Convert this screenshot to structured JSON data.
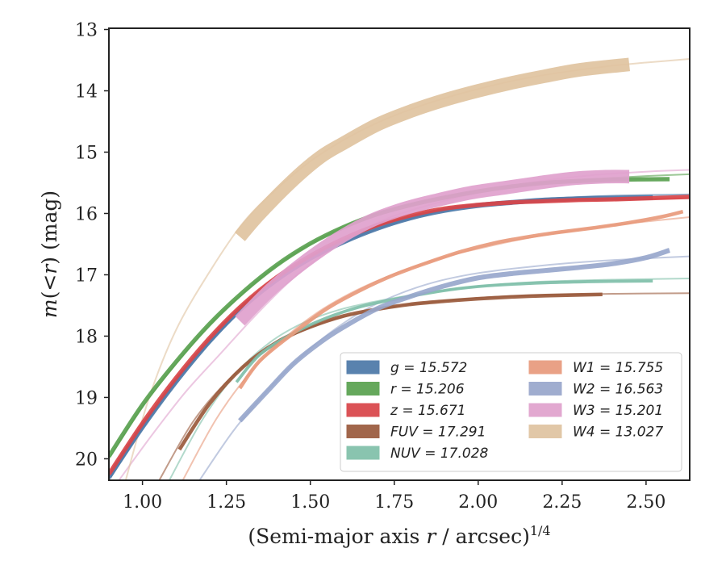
{
  "chart_data": {
    "type": "line",
    "xlabel": "(Semi-major axis r / arcsec)^1/4",
    "xlabel_parts": {
      "prefix": "(Semi-major axis ",
      "var": "r",
      "suffix": " / arcsec)",
      "sup": "1/4"
    },
    "ylabel": "m(< r) (mag)",
    "ylabel_parts": {
      "m": "m",
      "open": "(<",
      "r": "r",
      "close": ") (mag)"
    },
    "xlim": [
      0.9,
      2.63
    ],
    "ylim": [
      20.35,
      12.98
    ],
    "y_inverted": true,
    "x_ticks": [
      1.0,
      1.25,
      1.5,
      1.75,
      2.0,
      2.25,
      2.5
    ],
    "x_tick_labels": [
      "1.00",
      "1.25",
      "1.50",
      "1.75",
      "2.00",
      "2.25",
      "2.50"
    ],
    "y_ticks": [
      13,
      14,
      15,
      16,
      17,
      18,
      19,
      20
    ],
    "y_tick_labels": [
      "13",
      "14",
      "15",
      "16",
      "17",
      "18",
      "19",
      "20"
    ],
    "legend_position": "lower-right",
    "series": [
      {
        "name": "g = 15.572",
        "var": "g",
        "value": "15.572",
        "color": "#4c78a8",
        "model": [
          [
            0.9,
            20.35
          ],
          [
            1.0,
            19.5
          ],
          [
            1.1,
            18.75
          ],
          [
            1.2,
            18.1
          ],
          [
            1.3,
            17.55
          ],
          [
            1.4,
            17.1
          ],
          [
            1.5,
            16.75
          ],
          [
            1.6,
            16.47
          ],
          [
            1.7,
            16.25
          ],
          [
            1.8,
            16.08
          ],
          [
            1.9,
            15.95
          ],
          [
            2.0,
            15.86
          ],
          [
            2.1,
            15.8
          ],
          [
            2.2,
            15.76
          ],
          [
            2.3,
            15.73
          ],
          [
            2.4,
            15.71
          ],
          [
            2.5,
            15.7
          ],
          [
            2.63,
            15.69
          ]
        ],
        "data": [
          [
            0.9,
            20.3
          ],
          [
            1.0,
            19.48
          ],
          [
            1.1,
            18.74
          ],
          [
            1.2,
            18.08
          ],
          [
            1.3,
            17.52
          ],
          [
            1.4,
            17.08
          ],
          [
            1.5,
            16.73
          ],
          [
            1.6,
            16.46
          ],
          [
            1.7,
            16.24
          ],
          [
            1.8,
            16.07
          ],
          [
            1.9,
            15.95
          ],
          [
            2.0,
            15.87
          ],
          [
            2.1,
            15.82
          ],
          [
            2.2,
            15.78
          ],
          [
            2.3,
            15.76
          ],
          [
            2.4,
            15.75
          ],
          [
            2.52,
            15.74
          ]
        ],
        "band_width": 0.08
      },
      {
        "name": "r = 15.206",
        "var": "r",
        "value": "15.206",
        "color": "#59a14f",
        "model": [
          [
            0.9,
            20.0
          ],
          [
            1.0,
            19.15
          ],
          [
            1.1,
            18.45
          ],
          [
            1.2,
            17.82
          ],
          [
            1.3,
            17.3
          ],
          [
            1.4,
            16.85
          ],
          [
            1.5,
            16.5
          ],
          [
            1.6,
            16.22
          ],
          [
            1.7,
            16.0
          ],
          [
            1.8,
            15.85
          ],
          [
            1.9,
            15.73
          ],
          [
            2.0,
            15.63
          ],
          [
            2.1,
            15.56
          ],
          [
            2.2,
            15.5
          ],
          [
            2.3,
            15.46
          ],
          [
            2.4,
            15.42
          ],
          [
            2.5,
            15.39
          ],
          [
            2.63,
            15.36
          ]
        ],
        "data": [
          [
            0.9,
            19.96
          ],
          [
            1.0,
            19.12
          ],
          [
            1.1,
            18.42
          ],
          [
            1.2,
            17.8
          ],
          [
            1.3,
            17.28
          ],
          [
            1.4,
            16.84
          ],
          [
            1.5,
            16.49
          ],
          [
            1.6,
            16.22
          ],
          [
            1.7,
            16.01
          ],
          [
            1.8,
            15.86
          ],
          [
            1.9,
            15.74
          ],
          [
            2.0,
            15.64
          ],
          [
            2.1,
            15.56
          ],
          [
            2.2,
            15.5
          ],
          [
            2.3,
            15.47
          ],
          [
            2.4,
            15.45
          ],
          [
            2.57,
            15.44
          ]
        ],
        "band_width": 0.07
      },
      {
        "name": "z = 15.671",
        "var": "z",
        "value": "15.671",
        "color": "#d94448",
        "model": [
          [
            0.9,
            20.3
          ],
          [
            1.0,
            19.45
          ],
          [
            1.1,
            18.7
          ],
          [
            1.2,
            18.05
          ],
          [
            1.3,
            17.5
          ],
          [
            1.4,
            17.05
          ],
          [
            1.5,
            16.7
          ],
          [
            1.6,
            16.42
          ],
          [
            1.7,
            16.2
          ],
          [
            1.8,
            16.04
          ],
          [
            1.9,
            15.93
          ],
          [
            2.0,
            15.86
          ],
          [
            2.1,
            15.82
          ],
          [
            2.2,
            15.79
          ],
          [
            2.3,
            15.78
          ],
          [
            2.4,
            15.77
          ],
          [
            2.5,
            15.76
          ],
          [
            2.63,
            15.75
          ]
        ],
        "data": [
          [
            0.9,
            20.25
          ],
          [
            1.0,
            19.42
          ],
          [
            1.1,
            18.68
          ],
          [
            1.2,
            18.03
          ],
          [
            1.3,
            17.48
          ],
          [
            1.4,
            17.04
          ],
          [
            1.5,
            16.69
          ],
          [
            1.6,
            16.41
          ],
          [
            1.7,
            16.19
          ],
          [
            1.8,
            16.03
          ],
          [
            1.9,
            15.92
          ],
          [
            2.0,
            15.86
          ],
          [
            2.1,
            15.82
          ],
          [
            2.2,
            15.8
          ],
          [
            2.3,
            15.78
          ],
          [
            2.4,
            15.77
          ],
          [
            2.63,
            15.73
          ]
        ],
        "band_width": 0.07
      },
      {
        "name": "FUV = 17.291",
        "var": "FUV",
        "value": "17.291",
        "color": "#9a5a3c",
        "model": [
          [
            1.05,
            20.35
          ],
          [
            1.15,
            19.4
          ],
          [
            1.25,
            18.75
          ],
          [
            1.35,
            18.3
          ],
          [
            1.45,
            17.98
          ],
          [
            1.55,
            17.76
          ],
          [
            1.65,
            17.62
          ],
          [
            1.75,
            17.52
          ],
          [
            1.85,
            17.45
          ],
          [
            1.95,
            17.4
          ],
          [
            2.05,
            17.36
          ],
          [
            2.2,
            17.33
          ],
          [
            2.4,
            17.31
          ],
          [
            2.63,
            17.3
          ]
        ],
        "data": [
          [
            1.11,
            19.85
          ],
          [
            1.2,
            19.1
          ],
          [
            1.3,
            18.5
          ],
          [
            1.4,
            18.1
          ],
          [
            1.5,
            17.85
          ],
          [
            1.6,
            17.67
          ],
          [
            1.7,
            17.56
          ],
          [
            1.8,
            17.48
          ],
          [
            1.9,
            17.43
          ],
          [
            2.0,
            17.39
          ],
          [
            2.1,
            17.36
          ],
          [
            2.2,
            17.34
          ],
          [
            2.37,
            17.32
          ]
        ],
        "band_width": 0.06
      },
      {
        "name": "NUV = 17.028",
        "var": "NUV",
        "value": "17.028",
        "color": "#7fbfa9",
        "model": [
          [
            1.08,
            20.35
          ],
          [
            1.18,
            19.35
          ],
          [
            1.28,
            18.6
          ],
          [
            1.38,
            18.1
          ],
          [
            1.48,
            17.78
          ],
          [
            1.58,
            17.58
          ],
          [
            1.68,
            17.45
          ],
          [
            1.78,
            17.35
          ],
          [
            1.88,
            17.27
          ],
          [
            1.98,
            17.2
          ],
          [
            2.08,
            17.15
          ],
          [
            2.2,
            17.11
          ],
          [
            2.4,
            17.08
          ],
          [
            2.63,
            17.06
          ]
        ],
        "data": [
          [
            1.28,
            18.75
          ],
          [
            1.35,
            18.3
          ],
          [
            1.45,
            17.95
          ],
          [
            1.55,
            17.7
          ],
          [
            1.65,
            17.52
          ],
          [
            1.75,
            17.4
          ],
          [
            1.85,
            17.3
          ],
          [
            1.95,
            17.22
          ],
          [
            2.05,
            17.17
          ],
          [
            2.2,
            17.13
          ],
          [
            2.35,
            17.11
          ],
          [
            2.52,
            17.1
          ]
        ],
        "band_width": 0.05
      },
      {
        "name": "W1 = 15.755",
        "var": "W1",
        "value": "15.755",
        "color": "#e89a7c",
        "model": [
          [
            1.12,
            20.35
          ],
          [
            1.22,
            19.35
          ],
          [
            1.32,
            18.6
          ],
          [
            1.42,
            18.05
          ],
          [
            1.52,
            17.62
          ],
          [
            1.62,
            17.3
          ],
          [
            1.72,
            17.05
          ],
          [
            1.82,
            16.85
          ],
          [
            1.92,
            16.68
          ],
          [
            2.02,
            16.55
          ],
          [
            2.12,
            16.43
          ],
          [
            2.22,
            16.33
          ],
          [
            2.32,
            16.25
          ],
          [
            2.42,
            16.18
          ],
          [
            2.52,
            16.12
          ],
          [
            2.63,
            16.06
          ]
        ],
        "data": [
          [
            1.29,
            18.85
          ],
          [
            1.35,
            18.4
          ],
          [
            1.45,
            17.95
          ],
          [
            1.55,
            17.55
          ],
          [
            1.65,
            17.25
          ],
          [
            1.75,
            17.0
          ],
          [
            1.85,
            16.8
          ],
          [
            1.95,
            16.62
          ],
          [
            2.05,
            16.48
          ],
          [
            2.15,
            16.38
          ],
          [
            2.25,
            16.3
          ],
          [
            2.35,
            16.23
          ],
          [
            2.45,
            16.15
          ],
          [
            2.55,
            16.05
          ],
          [
            2.61,
            15.97
          ]
        ],
        "band_width": 0.06
      },
      {
        "name": "W2 = 16.563",
        "var": "W2",
        "value": "16.563",
        "color": "#98a7cc",
        "model": [
          [
            1.17,
            20.35
          ],
          [
            1.27,
            19.55
          ],
          [
            1.37,
            18.9
          ],
          [
            1.47,
            18.35
          ],
          [
            1.57,
            17.9
          ],
          [
            1.67,
            17.55
          ],
          [
            1.77,
            17.3
          ],
          [
            1.87,
            17.12
          ],
          [
            1.97,
            17.0
          ],
          [
            2.07,
            16.92
          ],
          [
            2.17,
            16.86
          ],
          [
            2.27,
            16.81
          ],
          [
            2.37,
            16.77
          ],
          [
            2.47,
            16.74
          ],
          [
            2.63,
            16.7
          ]
        ],
        "data": [
          [
            1.29,
            19.38
          ],
          [
            1.38,
            18.85
          ],
          [
            1.45,
            18.45
          ],
          [
            1.53,
            18.1
          ],
          [
            1.6,
            17.85
          ],
          [
            1.7,
            17.55
          ],
          [
            1.8,
            17.35
          ],
          [
            1.9,
            17.18
          ],
          [
            2.0,
            17.05
          ],
          [
            2.1,
            16.98
          ],
          [
            2.2,
            16.93
          ],
          [
            2.3,
            16.88
          ],
          [
            2.4,
            16.82
          ],
          [
            2.5,
            16.72
          ],
          [
            2.57,
            16.6
          ]
        ],
        "band_width": 0.08
      },
      {
        "name": "W3 = 15.201",
        "var": "W3",
        "value": "15.201",
        "color": "#e0a1cd",
        "model": [
          [
            0.93,
            20.35
          ],
          [
            1.03,
            19.6
          ],
          [
            1.13,
            18.9
          ],
          [
            1.23,
            18.3
          ],
          [
            1.33,
            17.7
          ],
          [
            1.43,
            17.15
          ],
          [
            1.53,
            16.7
          ],
          [
            1.63,
            16.35
          ],
          [
            1.73,
            16.08
          ],
          [
            1.83,
            15.9
          ],
          [
            1.93,
            15.75
          ],
          [
            2.03,
            15.62
          ],
          [
            2.13,
            15.52
          ],
          [
            2.23,
            15.44
          ],
          [
            2.33,
            15.38
          ],
          [
            2.43,
            15.34
          ],
          [
            2.53,
            15.31
          ],
          [
            2.63,
            15.29
          ]
        ],
        "data": [
          [
            1.29,
            17.75
          ],
          [
            1.38,
            17.25
          ],
          [
            1.48,
            16.8
          ],
          [
            1.58,
            16.42
          ],
          [
            1.68,
            16.12
          ],
          [
            1.78,
            15.92
          ],
          [
            1.88,
            15.78
          ],
          [
            1.98,
            15.66
          ],
          [
            2.08,
            15.58
          ],
          [
            2.18,
            15.5
          ],
          [
            2.28,
            15.43
          ],
          [
            2.38,
            15.4
          ],
          [
            2.45,
            15.4
          ]
        ],
        "band_width": 0.22
      },
      {
        "name": "W4 = 13.027",
        "var": "W4",
        "value": "13.027",
        "color": "#dfc3a0",
        "model": [
          [
            0.95,
            20.35
          ],
          [
            1.02,
            19.0
          ],
          [
            1.1,
            17.9
          ],
          [
            1.2,
            16.95
          ],
          [
            1.3,
            16.15
          ],
          [
            1.4,
            15.6
          ],
          [
            1.5,
            15.15
          ],
          [
            1.6,
            14.8
          ],
          [
            1.7,
            14.52
          ],
          [
            1.8,
            14.3
          ],
          [
            1.9,
            14.12
          ],
          [
            2.0,
            13.97
          ],
          [
            2.1,
            13.84
          ],
          [
            2.2,
            13.74
          ],
          [
            2.3,
            13.66
          ],
          [
            2.4,
            13.59
          ],
          [
            2.5,
            13.54
          ],
          [
            2.63,
            13.48
          ]
        ],
        "data": [
          [
            1.29,
            16.38
          ],
          [
            1.35,
            16.0
          ],
          [
            1.45,
            15.45
          ],
          [
            1.53,
            15.08
          ],
          [
            1.6,
            14.85
          ],
          [
            1.7,
            14.55
          ],
          [
            1.8,
            14.33
          ],
          [
            1.9,
            14.15
          ],
          [
            2.0,
            14.0
          ],
          [
            2.1,
            13.87
          ],
          [
            2.2,
            13.76
          ],
          [
            2.3,
            13.66
          ],
          [
            2.45,
            13.57
          ]
        ],
        "band_width": 0.22
      }
    ]
  }
}
